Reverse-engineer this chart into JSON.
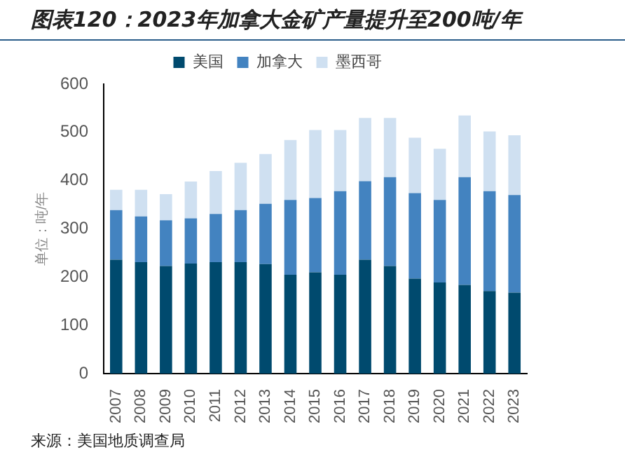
{
  "chart_data": {
    "type": "bar",
    "stacked": true,
    "title": "图表120：2023年加拿大金矿产量提升至200吨/年",
    "ylabel": "单位：吨/年",
    "categories": [
      "2007",
      "2008",
      "2009",
      "2010",
      "2011",
      "2012",
      "2013",
      "2014",
      "2015",
      "2016",
      "2017",
      "2018",
      "2019",
      "2020",
      "2021",
      "2022",
      "2023"
    ],
    "series": [
      {
        "name": "美国",
        "color": "#004a6e",
        "values": [
          236,
          231,
          223,
          228,
          231,
          231,
          227,
          205,
          210,
          205,
          236,
          223,
          197,
          189,
          184,
          171,
          168
        ]
      },
      {
        "name": "加拿大",
        "color": "#4383c0",
        "values": [
          103,
          95,
          95,
          94,
          100,
          108,
          125,
          155,
          154,
          173,
          163,
          184,
          177,
          171,
          223,
          207,
          202
        ]
      },
      {
        "name": "墨西哥",
        "color": "#cfe0f1",
        "values": [
          42,
          55,
          54,
          76,
          89,
          98,
          103,
          124,
          141,
          127,
          131,
          123,
          115,
          106,
          128,
          124,
          124
        ]
      }
    ],
    "ylim": [
      0,
      600
    ],
    "yticks": [
      0,
      100,
      200,
      300,
      400,
      500,
      600
    ],
    "grid": false,
    "legend": "top",
    "annotations": [
      "来源：美国地质调查局"
    ]
  }
}
